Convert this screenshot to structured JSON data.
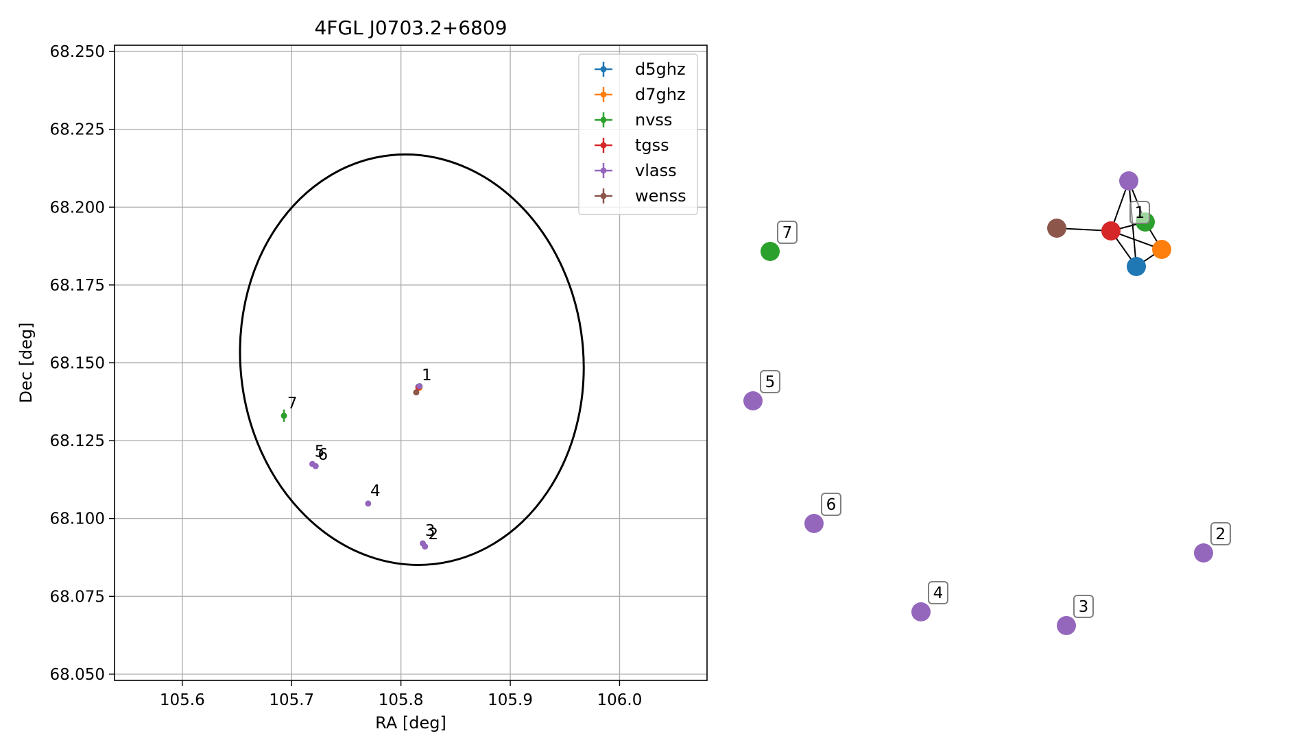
{
  "chart_data": [
    {
      "type": "scatter",
      "title": "4FGL J0703.2+6809",
      "xlabel": "RA [deg]",
      "ylabel": "Dec [deg]",
      "xlim": [
        105.538,
        106.08
      ],
      "ylim": [
        68.048,
        68.252
      ],
      "xticks": [
        "105.6",
        "105.7",
        "105.8",
        "105.9",
        "106.0"
      ],
      "yticks": [
        "68.050",
        "68.075",
        "68.100",
        "68.125",
        "68.150",
        "68.175",
        "68.200",
        "68.225",
        "68.250"
      ],
      "grid": true,
      "legend_position": "top-right",
      "series": [
        {
          "name": "d5ghz",
          "color": "#1f77b4",
          "points": [
            {
              "x": 105.816,
              "y": 68.1423,
              "label": "1"
            }
          ]
        },
        {
          "name": "d7ghz",
          "color": "#ff7f0e",
          "points": [
            {
              "x": 105.817,
              "y": 68.142,
              "label": "1"
            }
          ]
        },
        {
          "name": "nvss",
          "color": "#2ca02c",
          "points": [
            {
              "x": 105.817,
              "y": 68.1425,
              "label": "1",
              "yerr": 0.0005
            },
            {
              "x": 105.693,
              "y": 68.133,
              "label": "7",
              "yerr": 0.002
            }
          ]
        },
        {
          "name": "tgss",
          "color": "#d62728",
          "points": [
            {
              "x": 105.816,
              "y": 68.1421,
              "label": "1"
            }
          ]
        },
        {
          "name": "vlass",
          "color": "#9467bd",
          "points": [
            {
              "x": 105.817,
              "y": 68.1425,
              "label": "1"
            },
            {
              "x": 105.822,
              "y": 68.091,
              "label": "2"
            },
            {
              "x": 105.82,
              "y": 68.092,
              "label": "3"
            },
            {
              "x": 105.77,
              "y": 68.1048,
              "label": "4"
            },
            {
              "x": 105.719,
              "y": 68.1175,
              "label": "5"
            },
            {
              "x": 105.722,
              "y": 68.1168,
              "label": "6"
            }
          ]
        },
        {
          "name": "wenss",
          "color": "#8c564b",
          "points": [
            {
              "x": 105.814,
              "y": 68.1405,
              "label": "1"
            }
          ]
        }
      ],
      "ellipse": {
        "center": [
          105.81,
          68.151
        ],
        "color": "#000000"
      },
      "annotations": [
        {
          "text": "1",
          "x": 105.819,
          "y": 68.1435
        },
        {
          "text": "7",
          "x": 105.696,
          "y": 68.1345
        },
        {
          "text": "5",
          "x": 105.721,
          "y": 68.119
        },
        {
          "text": "6",
          "x": 105.724,
          "y": 68.118
        },
        {
          "text": "4",
          "x": 105.772,
          "y": 68.1063
        },
        {
          "text": "3",
          "x": 105.822,
          "y": 68.0935
        },
        {
          "text": "2",
          "x": 105.825,
          "y": 68.0925
        }
      ]
    },
    {
      "type": "network",
      "nodes": [
        {
          "id": "vlass-1",
          "color": "#9467bd"
        },
        {
          "id": "nvss-1",
          "color": "#2ca02c"
        },
        {
          "id": "wenss-1",
          "color": "#8c564b"
        },
        {
          "id": "tgss-1",
          "color": "#d62728"
        },
        {
          "id": "d7ghz-1",
          "color": "#ff7f0e"
        },
        {
          "id": "d5ghz-1",
          "color": "#1f77b4"
        },
        {
          "id": "nvss-7",
          "color": "#2ca02c",
          "label": "7"
        },
        {
          "id": "vlass-5",
          "color": "#9467bd",
          "label": "5"
        },
        {
          "id": "vlass-6",
          "color": "#9467bd",
          "label": "6"
        },
        {
          "id": "vlass-4",
          "color": "#9467bd",
          "label": "4"
        },
        {
          "id": "vlass-3",
          "color": "#9467bd",
          "label": "3"
        },
        {
          "id": "vlass-2",
          "color": "#9467bd",
          "label": "2"
        }
      ],
      "edges": [
        [
          "tgss-1",
          "vlass-1"
        ],
        [
          "tgss-1",
          "nvss-1"
        ],
        [
          "tgss-1",
          "d7ghz-1"
        ],
        [
          "tgss-1",
          "d5ghz-1"
        ],
        [
          "tgss-1",
          "wenss-1"
        ],
        [
          "vlass-1",
          "nvss-1"
        ],
        [
          "vlass-1",
          "d5ghz-1"
        ],
        [
          "nvss-1",
          "d7ghz-1"
        ],
        [
          "d5ghz-1",
          "d7ghz-1"
        ]
      ],
      "cluster_label": "1"
    }
  ]
}
